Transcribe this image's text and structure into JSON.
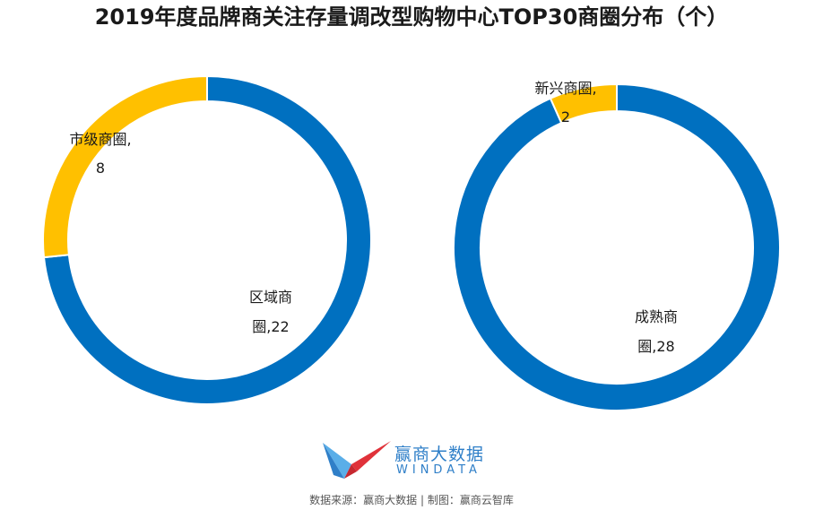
{
  "title": "2019年度品牌商关注存量调改型购物中心TOP30商圈分布（个）",
  "colors": {
    "blue": "#0070c0",
    "yellow": "#ffc000",
    "logo_blue": "#2f7fc8",
    "logo_red": "#e0323a"
  },
  "chart_data": [
    {
      "type": "pie",
      "style": "donut",
      "slices": [
        {
          "label_lines": [
            "区域商",
            "圈,22"
          ],
          "name": "区域商圈",
          "value": 22,
          "color": "#0070c0"
        },
        {
          "label_lines": [
            "市级商圈,",
            "8"
          ],
          "name": "市级商圈",
          "value": 8,
          "color": "#ffc000"
        }
      ]
    },
    {
      "type": "pie",
      "style": "donut",
      "slices": [
        {
          "label_lines": [
            "成熟商",
            "圈,28"
          ],
          "name": "成熟商圈",
          "value": 28,
          "color": "#0070c0"
        },
        {
          "label_lines": [
            "新兴商圈,",
            "2"
          ],
          "name": "新兴商圈",
          "value": 2,
          "color": "#ffc000"
        }
      ]
    }
  ],
  "logo": {
    "cn": "赢商大数据",
    "en": "WINDATA"
  },
  "source": "数据来源：赢商大数据 | 制图：赢商云智库"
}
